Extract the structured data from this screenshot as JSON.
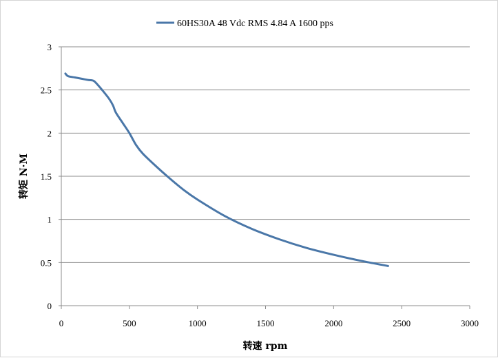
{
  "chart_data": {
    "type": "line",
    "title": "",
    "xlabel": "转速 rpm",
    "ylabel": "转矩 N·M",
    "xlim": [
      0,
      3000
    ],
    "ylim": [
      0,
      3
    ],
    "xticks": [
      0,
      500,
      1000,
      1500,
      2000,
      2500,
      3000
    ],
    "yticks": [
      0,
      0.5,
      1,
      1.5,
      2,
      2.5,
      3
    ],
    "xtick_labels": [
      "0",
      "500",
      "1000",
      "1500",
      "2000",
      "2500",
      "3000"
    ],
    "ytick_labels": [
      "0",
      "0.5",
      "1",
      "1.5",
      "2",
      "2.5",
      "3"
    ],
    "grid": true,
    "legend_position": "top",
    "series": [
      {
        "name": "60HS30A  48 Vdc   RMS 4.84 A   1600 pps",
        "color": "#4a77a8",
        "x": [
          30,
          50,
          100,
          150,
          200,
          230,
          250,
          300,
          350,
          380,
          400,
          450,
          500,
          550,
          600,
          700,
          800,
          900,
          1000,
          1200,
          1400,
          1600,
          1800,
          2000,
          2200,
          2400
        ],
        "y": [
          2.69,
          2.66,
          2.645,
          2.63,
          2.615,
          2.61,
          2.59,
          2.5,
          2.4,
          2.32,
          2.24,
          2.12,
          2.0,
          1.86,
          1.76,
          1.61,
          1.47,
          1.34,
          1.23,
          1.04,
          0.89,
          0.77,
          0.67,
          0.59,
          0.52,
          0.46
        ]
      }
    ]
  }
}
